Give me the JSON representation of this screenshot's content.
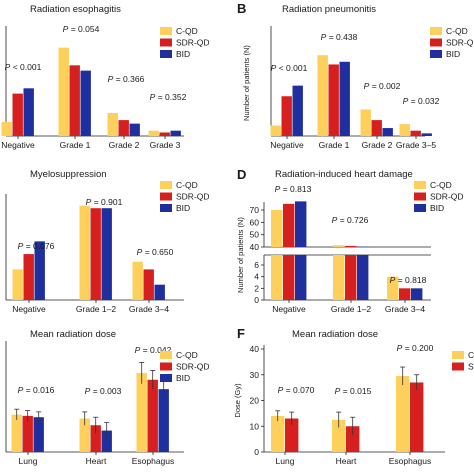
{
  "colors": {
    "cqd": "#fdd05b",
    "sdr": "#d61f1f",
    "bid": "#1f2f9e"
  },
  "chart_data": [
    {
      "panel": "A",
      "letter": "",
      "type": "bar",
      "title": "Radiation esophagitis",
      "ylabel": "",
      "categories": [
        "Negative",
        "Grade 1",
        "Grade 2",
        "Grade 3"
      ],
      "series": [
        {
          "name": "C-QD",
          "values": [
            8,
            50,
            13,
            3
          ]
        },
        {
          "name": "SDR-QD",
          "values": [
            24,
            40,
            9,
            2
          ]
        },
        {
          "name": "BID",
          "values": [
            27,
            37,
            7,
            3
          ]
        }
      ],
      "ylim": [
        0,
        60
      ],
      "annotations": [
        "P = 0.054",
        "P < 0.001",
        "P = 0.366",
        "P = 0.352"
      ],
      "legend": [
        "C-QD",
        "SDR-QD",
        "BID"
      ]
    },
    {
      "panel": "B",
      "letter": "B",
      "type": "bar",
      "title": "Radiation pneumonitis",
      "ylabel": "Number of patients (N)",
      "categories": [
        "Negative",
        "Grade 1",
        "Grade 2",
        "Grade 3–5"
      ],
      "series": [
        {
          "name": "C-QD",
          "values": [
            8,
            61,
            20,
            9
          ]
        },
        {
          "name": "SDR-QD",
          "values": [
            30,
            54,
            12,
            4
          ]
        },
        {
          "name": "BID",
          "values": [
            38,
            56,
            6,
            2
          ]
        }
      ],
      "ylim": [
        0,
        80
      ],
      "annotations": [
        "P = 0.438",
        "P < 0.001",
        "P = 0.002",
        "P = 0.032"
      ],
      "legend": [
        "C-QD",
        "SDR-QD",
        "BID"
      ]
    },
    {
      "panel": "C",
      "letter": "",
      "type": "bar",
      "title": "Myelosuppression",
      "ylabel": "",
      "categories": [
        "Negative",
        "Grade 1–2",
        "Grade 3–4"
      ],
      "series": [
        {
          "name": "C-QD",
          "values": [
            12,
            37,
            15
          ]
        },
        {
          "name": "SDR-QD",
          "values": [
            18,
            36,
            12
          ]
        },
        {
          "name": "BID",
          "values": [
            23,
            36,
            6
          ]
        }
      ],
      "ylim": [
        0,
        40
      ],
      "annotations": [
        "P = 0.901",
        "P = 0.076",
        "P = 0.650"
      ],
      "legend": [
        "C-QD",
        "SDR-QD",
        "BID"
      ]
    },
    {
      "panel": "D",
      "letter": "D",
      "type": "bar",
      "title": "Radiation-induced heart damage",
      "ylabel": "Number of patients (N)",
      "categories": [
        "Negative",
        "Grade 1–2",
        "Grade 3–4"
      ],
      "series": [
        {
          "name": "C-QD",
          "values": [
            70,
            25,
            4
          ]
        },
        {
          "name": "SDR-QD",
          "values": [
            75,
            23,
            2
          ]
        },
        {
          "name": "BID",
          "values": [
            77,
            21,
            2
          ]
        }
      ],
      "yticks_upper": [
        "70",
        "60",
        "50",
        "40"
      ],
      "yticks_lower": [
        "6",
        "4",
        "2",
        "0"
      ],
      "annotations": [
        "P = 0.813",
        "P = 0.726",
        "P = 0.818"
      ],
      "legend": [
        "C-QD",
        "SDR-QD",
        "BID"
      ]
    },
    {
      "panel": "E",
      "letter": "",
      "type": "bar",
      "title": "Mean radiation dose",
      "ylabel": "",
      "categories": [
        "Lung",
        "Heart",
        "Esophagus"
      ],
      "series": [
        {
          "name": "C-QD",
          "values": [
            14,
            12.5,
            29.5
          ],
          "err": [
            2,
            2.5,
            4
          ]
        },
        {
          "name": "SDR-QD",
          "values": [
            13.5,
            10,
            27
          ],
          "err": [
            2,
            3,
            3.5
          ]
        },
        {
          "name": "BID",
          "values": [
            13,
            8,
            23.5
          ],
          "err": [
            2,
            3,
            3
          ]
        }
      ],
      "ylim": [
        0,
        40
      ],
      "annotations": [
        "P = 0.042",
        "P = 0.016",
        "P = 0.003"
      ],
      "legend": [
        "C-QD",
        "SDR-QD",
        "BID"
      ]
    },
    {
      "panel": "F",
      "letter": "F",
      "type": "bar",
      "title": "Mean radiation dose",
      "ylabel": "Dose (Gy)",
      "categories": [
        "Lung",
        "Heart",
        "Esophagus"
      ],
      "series": [
        {
          "name": "C-QD",
          "values": [
            14,
            12.5,
            29.5
          ],
          "err": [
            2,
            3,
            3.5
          ]
        },
        {
          "name": "SDR-QD",
          "values": [
            13,
            10,
            27
          ],
          "err": [
            2.5,
            3.5,
            3
          ]
        }
      ],
      "ylim": [
        0,
        40
      ],
      "yticks": [
        "0",
        "10",
        "20",
        "30",
        "40"
      ],
      "annotations": [
        "P = 0.200",
        "P = 0.070",
        "P = 0.015"
      ],
      "legend": [
        "C-",
        "SD"
      ]
    }
  ]
}
